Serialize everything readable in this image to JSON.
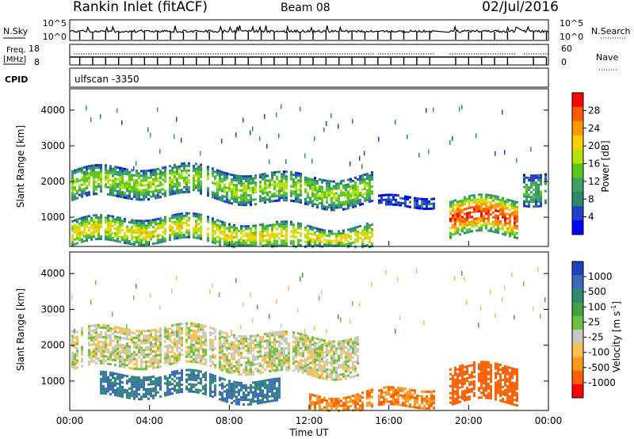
{
  "header": {
    "station": "Rankin Inlet (fitACF)",
    "beam": "Beam 08",
    "date": "02/Jul/2016"
  },
  "panels": {
    "nsky": {
      "label": "N.Sky",
      "ticks": [
        "10^5",
        "10^0"
      ],
      "right_label": "N.Search",
      "right_ticks": [
        "10^5",
        "10^0"
      ]
    },
    "freq": {
      "label_line1": "Freq.",
      "label_line2": "[MHz]",
      "ticks": [
        "18",
        "8"
      ],
      "right_label": "Nave",
      "right_ticks": [
        "60",
        "0"
      ]
    },
    "cpid": {
      "label": "CPID",
      "value": "ulfscan -3350"
    }
  },
  "colorbars": {
    "power": {
      "label": "Power [dB]",
      "ticks": [
        "28",
        "24",
        "20",
        "16",
        "12",
        "8",
        "4"
      ],
      "colors": [
        "#ff0000",
        "#ff5a00",
        "#ff9a00",
        "#ffd000",
        "#b8e000",
        "#58c820",
        "#3ca060",
        "#2a8a6a",
        "#2040c8",
        "#0000ff"
      ]
    },
    "velocity": {
      "label": "Velocity [m s",
      "label_sup": "-1",
      "label_end": "]",
      "ticks": [
        "1000",
        "500",
        "100",
        "25",
        "-25",
        "-100",
        "-500",
        "-1000"
      ],
      "colors": [
        "#2040c0",
        "#3c6ab8",
        "#2e8a70",
        "#44a040",
        "#70c040",
        "#c8c8c0",
        "#ffc050",
        "#ff9a20",
        "#ff6000",
        "#ff0000"
      ]
    }
  },
  "axes": {
    "ylabel": "Slant Range [km]",
    "yticks": [
      "4000",
      "3000",
      "2000",
      "1000"
    ],
    "xlabel": "Time UT",
    "xticks": [
      "00:00",
      "04:00",
      "08:00",
      "12:00",
      "16:00",
      "20:00",
      "00:00"
    ]
  },
  "chart_data": [
    {
      "type": "heatmap",
      "title": "Power",
      "xlabel": "Time UT",
      "ylabel": "Slant Range [km]",
      "x_range_hours": [
        0,
        24
      ],
      "ylim": [
        180,
        4600
      ],
      "colorbar_label": "Power [dB]",
      "colorbar_range": [
        0,
        32
      ],
      "data_gaps_hours": [
        [
          15.2,
          15.4
        ],
        [
          18.2,
          19.0
        ],
        [
          22.4,
          22.7
        ]
      ],
      "features": [
        {
          "x_hours": [
            0.0,
            15.2
          ],
          "y_km": [
            1500,
            2300
          ],
          "power_dB": 16
        },
        {
          "x_hours": [
            15.4,
            18.2
          ],
          "y_km": [
            1300,
            1600
          ],
          "power_dB": 6
        },
        {
          "x_hours": [
            19.0,
            22.4
          ],
          "y_km": [
            400,
            1400
          ],
          "power_dB": 28
        },
        {
          "x_hours": [
            0.0,
            15.2
          ],
          "y_km": [
            200,
            900
          ],
          "power_dB": 20
        },
        {
          "x_hours": [
            22.7,
            24.0
          ],
          "y_km": [
            1300,
            2200
          ],
          "power_dB": 12
        }
      ]
    },
    {
      "type": "heatmap",
      "title": "Velocity",
      "xlabel": "Time UT",
      "ylabel": "Slant Range [km]",
      "x_range_hours": [
        0,
        24
      ],
      "ylim": [
        180,
        4600
      ],
      "colorbar_label": "Velocity [m s-1]",
      "colorbar_range": [
        -1000,
        1000
      ],
      "data_gaps_hours": [
        [
          15.2,
          15.4
        ],
        [
          18.2,
          19.0
        ],
        [
          22.4,
          22.7
        ]
      ],
      "features": [
        {
          "x_hours": [
            0.0,
            14.5
          ],
          "y_km": [
            1300,
            2400
          ],
          "velocity_ms": 0
        },
        {
          "x_hours": [
            1.5,
            10.5
          ],
          "y_km": [
            500,
            1100
          ],
          "velocity_ms": 300
        },
        {
          "x_hours": [
            12.0,
            18.2
          ],
          "y_km": [
            300,
            800
          ],
          "velocity_ms": -300
        },
        {
          "x_hours": [
            19.0,
            22.4
          ],
          "y_km": [
            300,
            1300
          ],
          "velocity_ms": -400
        }
      ]
    }
  ]
}
